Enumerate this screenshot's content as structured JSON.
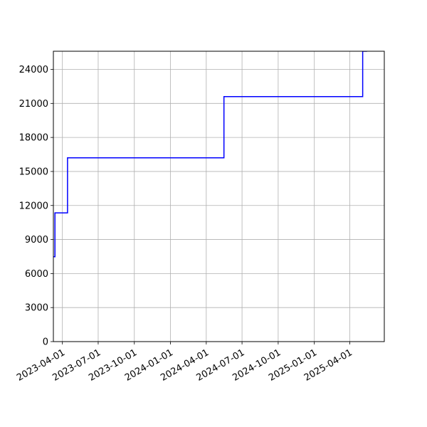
{
  "chart_data": {
    "type": "line",
    "title": "",
    "xlabel": "",
    "ylabel": "",
    "x_axis_type": "date",
    "xlim": [
      "2023-03-09",
      "2025-06-28"
    ],
    "ylim": [
      0,
      25600
    ],
    "grid": true,
    "x_ticks": [
      "2023-04-01",
      "2023-07-01",
      "2023-10-01",
      "2024-01-01",
      "2024-04-01",
      "2024-07-01",
      "2024-10-01",
      "2025-01-01",
      "2025-04-01"
    ],
    "y_ticks": [
      0,
      3000,
      6000,
      9000,
      12000,
      15000,
      18000,
      21000,
      24000
    ],
    "series": [
      {
        "color": "#0000ff",
        "drawstyle": "steps-post",
        "x": [
          "2023-03-09",
          "2023-03-13",
          "2023-04-14",
          "2024-05-16",
          "2025-05-04",
          "2025-05-15"
        ],
        "y": [
          7480,
          11350,
          16200,
          21600,
          25600,
          25600
        ]
      }
    ]
  }
}
